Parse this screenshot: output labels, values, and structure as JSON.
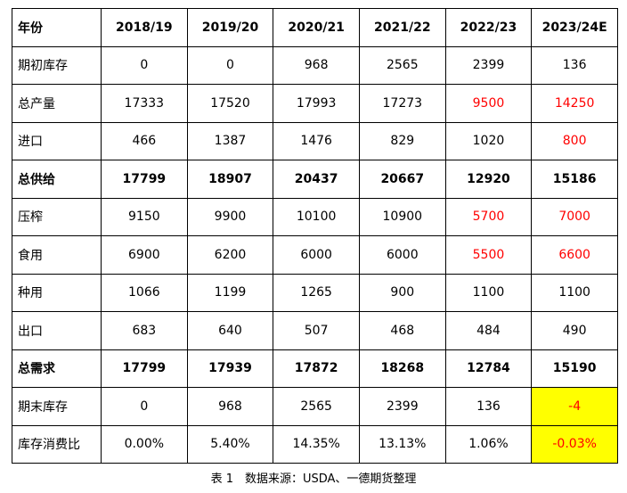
{
  "table": {
    "headers": [
      "年份",
      "2018/19",
      "2019/20",
      "2020/21",
      "2021/22",
      "2022/23",
      "2023/24E"
    ],
    "rows": [
      {
        "label": "期初库存",
        "values": [
          "0",
          "0",
          "968",
          "2565",
          "2399",
          "136"
        ]
      },
      {
        "label": "总产量",
        "values": [
          "17333",
          "17520",
          "17993",
          "17273",
          "9500",
          "14250"
        ]
      },
      {
        "label": "进口",
        "values": [
          "466",
          "1387",
          "1476",
          "829",
          "1020",
          "800"
        ]
      },
      {
        "label": "总供给",
        "values": [
          "17799",
          "18907",
          "20437",
          "20667",
          "12920",
          "15186"
        ]
      },
      {
        "label": "压榨",
        "values": [
          "9150",
          "9900",
          "10100",
          "10900",
          "5700",
          "7000"
        ]
      },
      {
        "label": "食用",
        "values": [
          "6900",
          "6200",
          "6000",
          "6000",
          "5500",
          "6600"
        ]
      },
      {
        "label": "种用",
        "values": [
          "1066",
          "1199",
          "1265",
          "900",
          "1100",
          "1100"
        ]
      },
      {
        "label": "出口",
        "values": [
          "683",
          "640",
          "507",
          "468",
          "484",
          "490"
        ]
      },
      {
        "label": "总需求",
        "values": [
          "17799",
          "17939",
          "17872",
          "18268",
          "12784",
          "15190"
        ]
      },
      {
        "label": "期末库存",
        "values": [
          "0",
          "968",
          "2565",
          "2399",
          "136",
          "-4"
        ]
      },
      {
        "label": "库存消费比",
        "values": [
          "0.00%",
          "5.40%",
          "14.35%",
          "13.13%",
          "1.06%",
          "-0.03%"
        ]
      }
    ]
  },
  "caption": "表 1　数据来源：USDA、一德期货整理",
  "colors": {
    "highlight_red": "#ff0000",
    "highlight_yellow": "#ffff00"
  }
}
